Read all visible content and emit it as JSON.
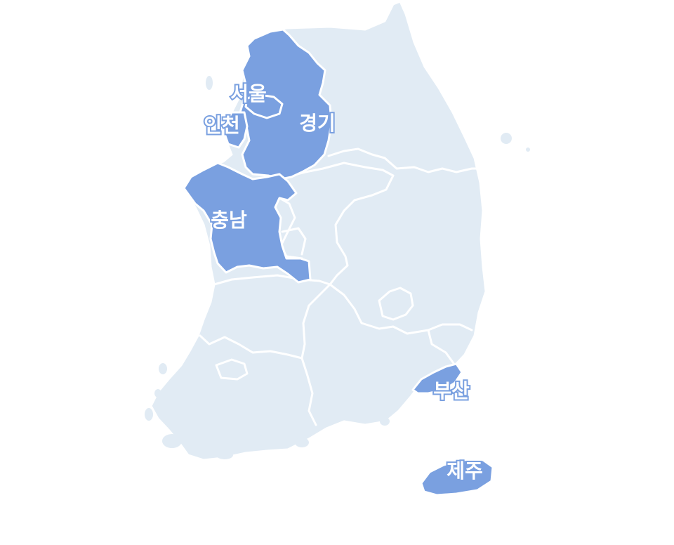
{
  "map": {
    "colors": {
      "background": "#ffffff",
      "region_default": "#e1ebf4",
      "region_highlight": "#7aa0e0",
      "border": "#ffffff",
      "label_fill": "#ffffff",
      "label_outline": "#7aa0e0"
    },
    "highlighted_regions": [
      {
        "id": "gyeonggi",
        "label": "경기"
      },
      {
        "id": "seoul",
        "label": "서울"
      },
      {
        "id": "incheon",
        "label": "인천"
      },
      {
        "id": "chungnam",
        "label": "충남"
      },
      {
        "id": "busan",
        "label": "부산"
      },
      {
        "id": "jeju",
        "label": "제주"
      }
    ]
  }
}
